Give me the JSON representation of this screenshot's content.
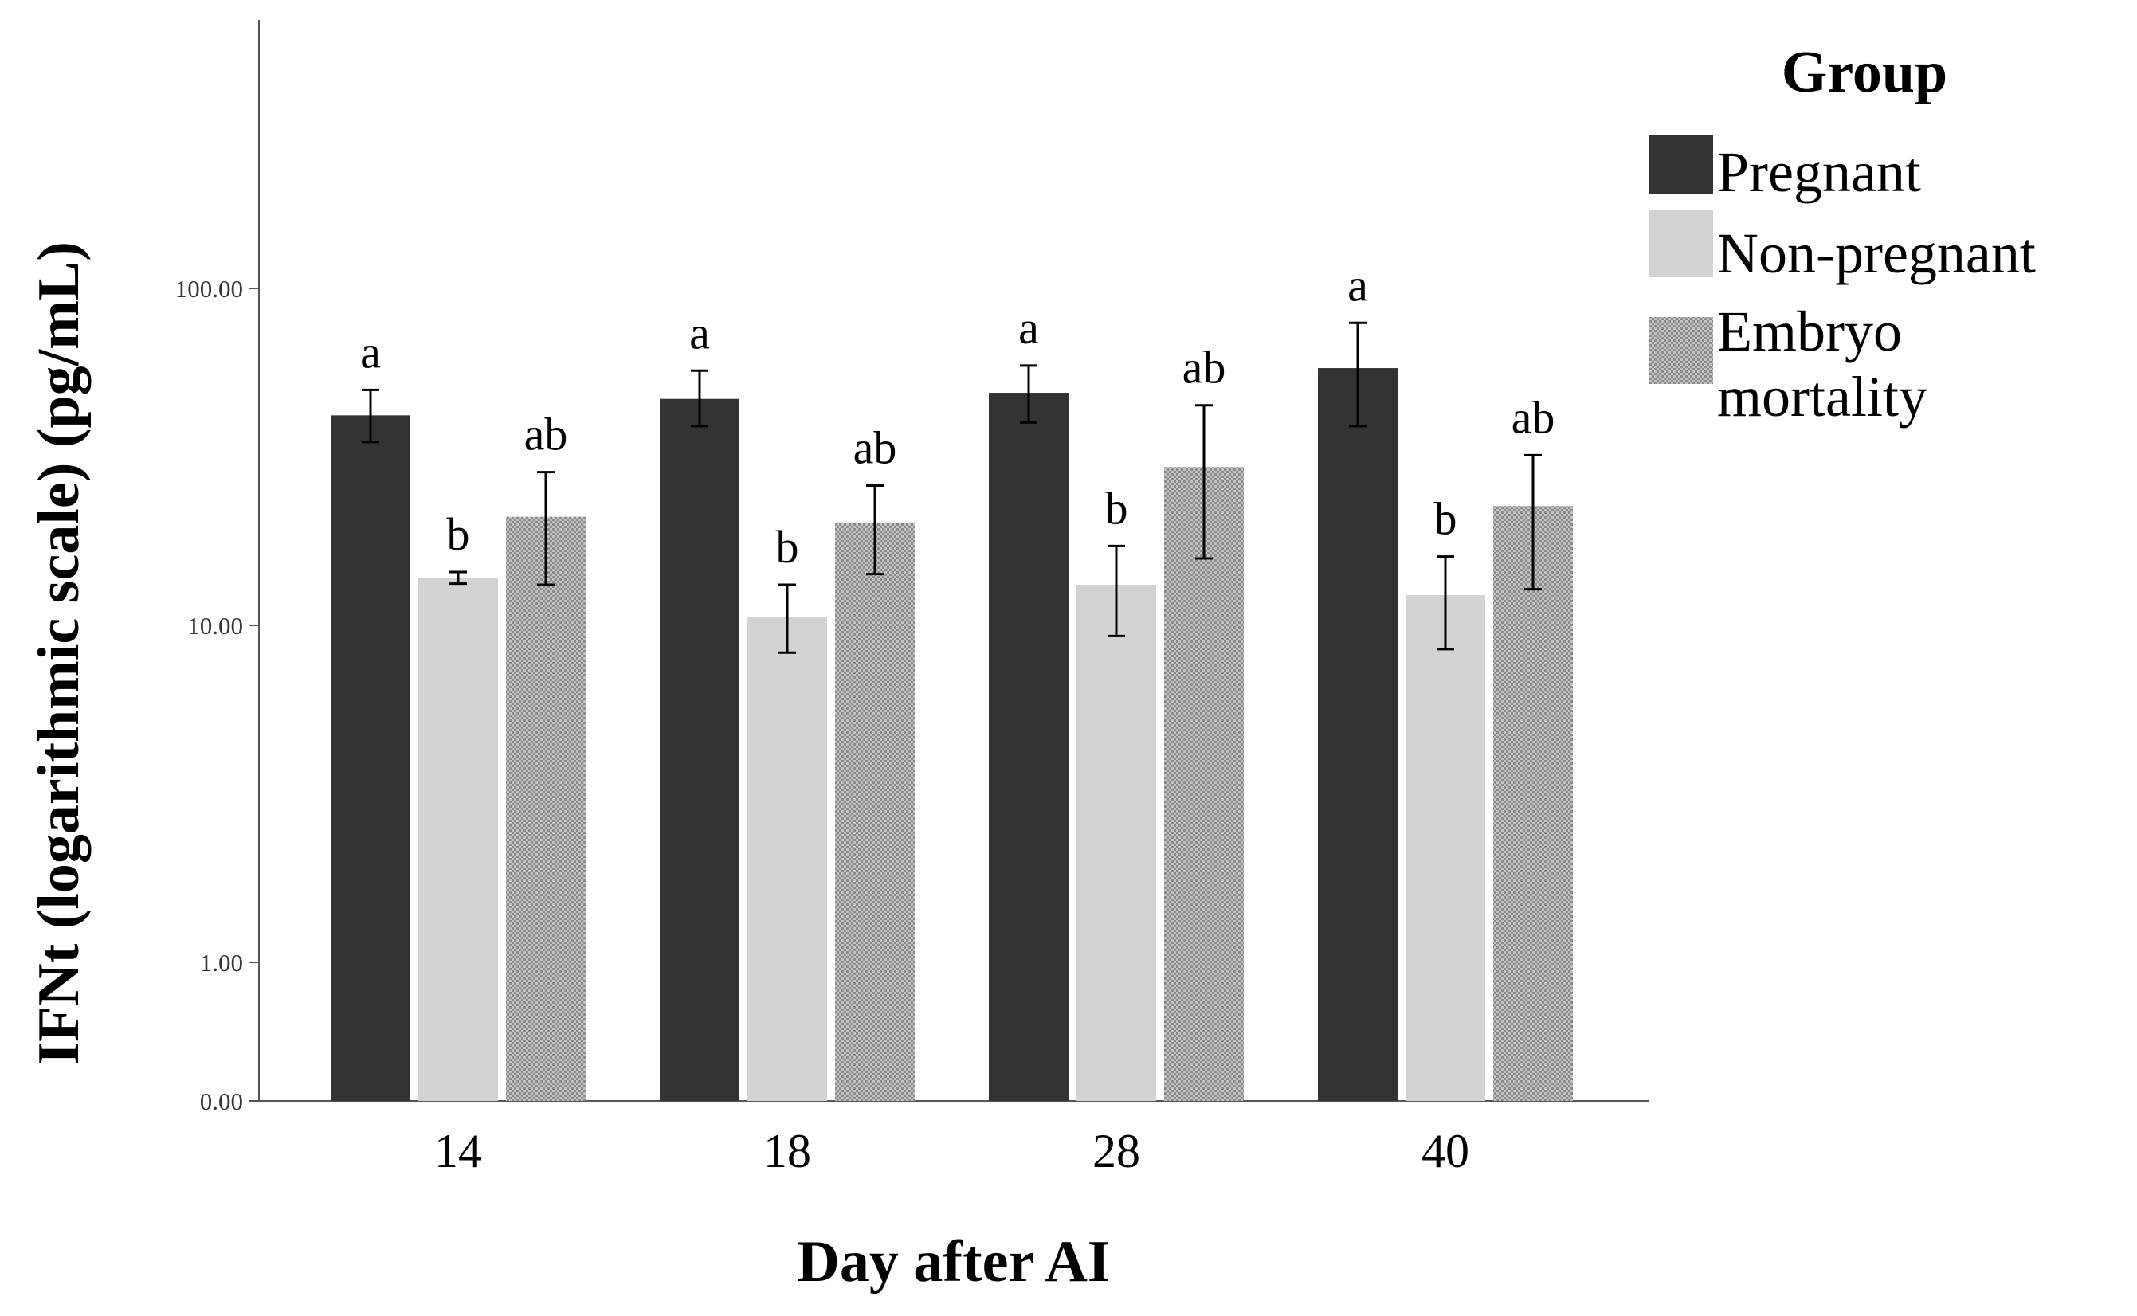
{
  "chart_data": {
    "type": "bar",
    "xlabel": "Day after AI",
    "ylabel": "IFNt (logarithmic scale) (pg/mL)",
    "yscale": "log",
    "yticks": [
      {
        "value": 0,
        "label": "0.00"
      },
      {
        "value": 1,
        "label": "1.00"
      },
      {
        "value": 10,
        "label": "10.00"
      },
      {
        "value": 100,
        "label": "100.00"
      }
    ],
    "ylim": [
      0,
      300
    ],
    "grid": false,
    "legend": {
      "title": "Group",
      "placement": "right"
    },
    "categories": [
      "14",
      "18",
      "28",
      "40"
    ],
    "series": [
      {
        "name": "Pregnant",
        "color": "#333333",
        "pattern": "solid",
        "values": [
          42,
          47,
          49,
          58
        ],
        "err_low": [
          35,
          39,
          40,
          39
        ],
        "err_high": [
          50,
          57,
          59,
          79
        ],
        "sig": [
          "a",
          "a",
          "a",
          "a"
        ]
      },
      {
        "name": "Non-pregnant",
        "color": "#d3d3d3",
        "pattern": "solid",
        "values": [
          13.8,
          10.6,
          13.2,
          12.3
        ],
        "err_low": [
          13.3,
          8.3,
          9.3,
          8.5
        ],
        "err_high": [
          14.4,
          13.2,
          17.2,
          16.0
        ],
        "sig": [
          "b",
          "b",
          "b",
          "b"
        ]
      },
      {
        "name": "Embryo mortality",
        "color": "#a9a9a9",
        "pattern": "dotted",
        "values": [
          21,
          20.2,
          29.5,
          22.6
        ],
        "err_low": [
          13.2,
          14.2,
          15.8,
          12.8
        ],
        "err_high": [
          28.5,
          26,
          45,
          32
        ],
        "sig": [
          "ab",
          "ab",
          "ab",
          "ab"
        ]
      }
    ]
  }
}
